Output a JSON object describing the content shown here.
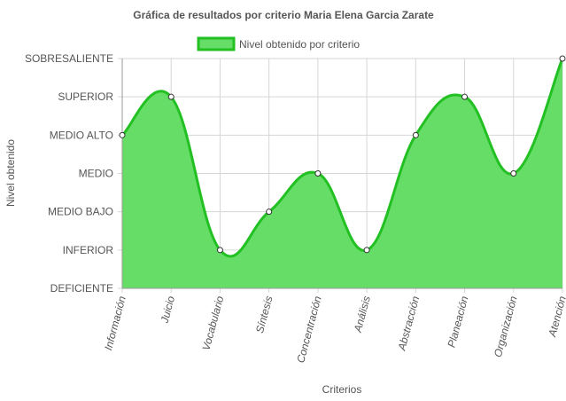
{
  "chart_data": {
    "type": "area",
    "title": "Gráfica de resultados por criterio Maria Elena Garcia Zarate",
    "xlabel": "Criterios",
    "ylabel": "Nivel obtenido",
    "y_levels": [
      "DEFICIENTE",
      "INFERIOR",
      "MEDIO BAJO",
      "MEDIO",
      "MEDIO ALTO",
      "SUPERIOR",
      "SOBRESALIENTE"
    ],
    "categories": [
      "Información",
      "Juicio",
      "Vocabulario",
      "Síntesis",
      "Concentración",
      "Análisis",
      "Abstracción",
      "Planeación",
      "Organización",
      "Atención"
    ],
    "series": [
      {
        "name": "Nivel obtenido por criterio",
        "values": [
          "MEDIO ALTO",
          "SUPERIOR",
          "INFERIOR",
          "MEDIO BAJO",
          "MEDIO",
          "INFERIOR",
          "MEDIO ALTO",
          "SUPERIOR",
          "MEDIO",
          "SOBRESALIENTE"
        ]
      }
    ],
    "legend_position": "top",
    "grid": true,
    "colors": {
      "fill": "#66dd66",
      "line": "#22c022",
      "point_fill": "#ffffff",
      "point_stroke": "#333333"
    }
  }
}
